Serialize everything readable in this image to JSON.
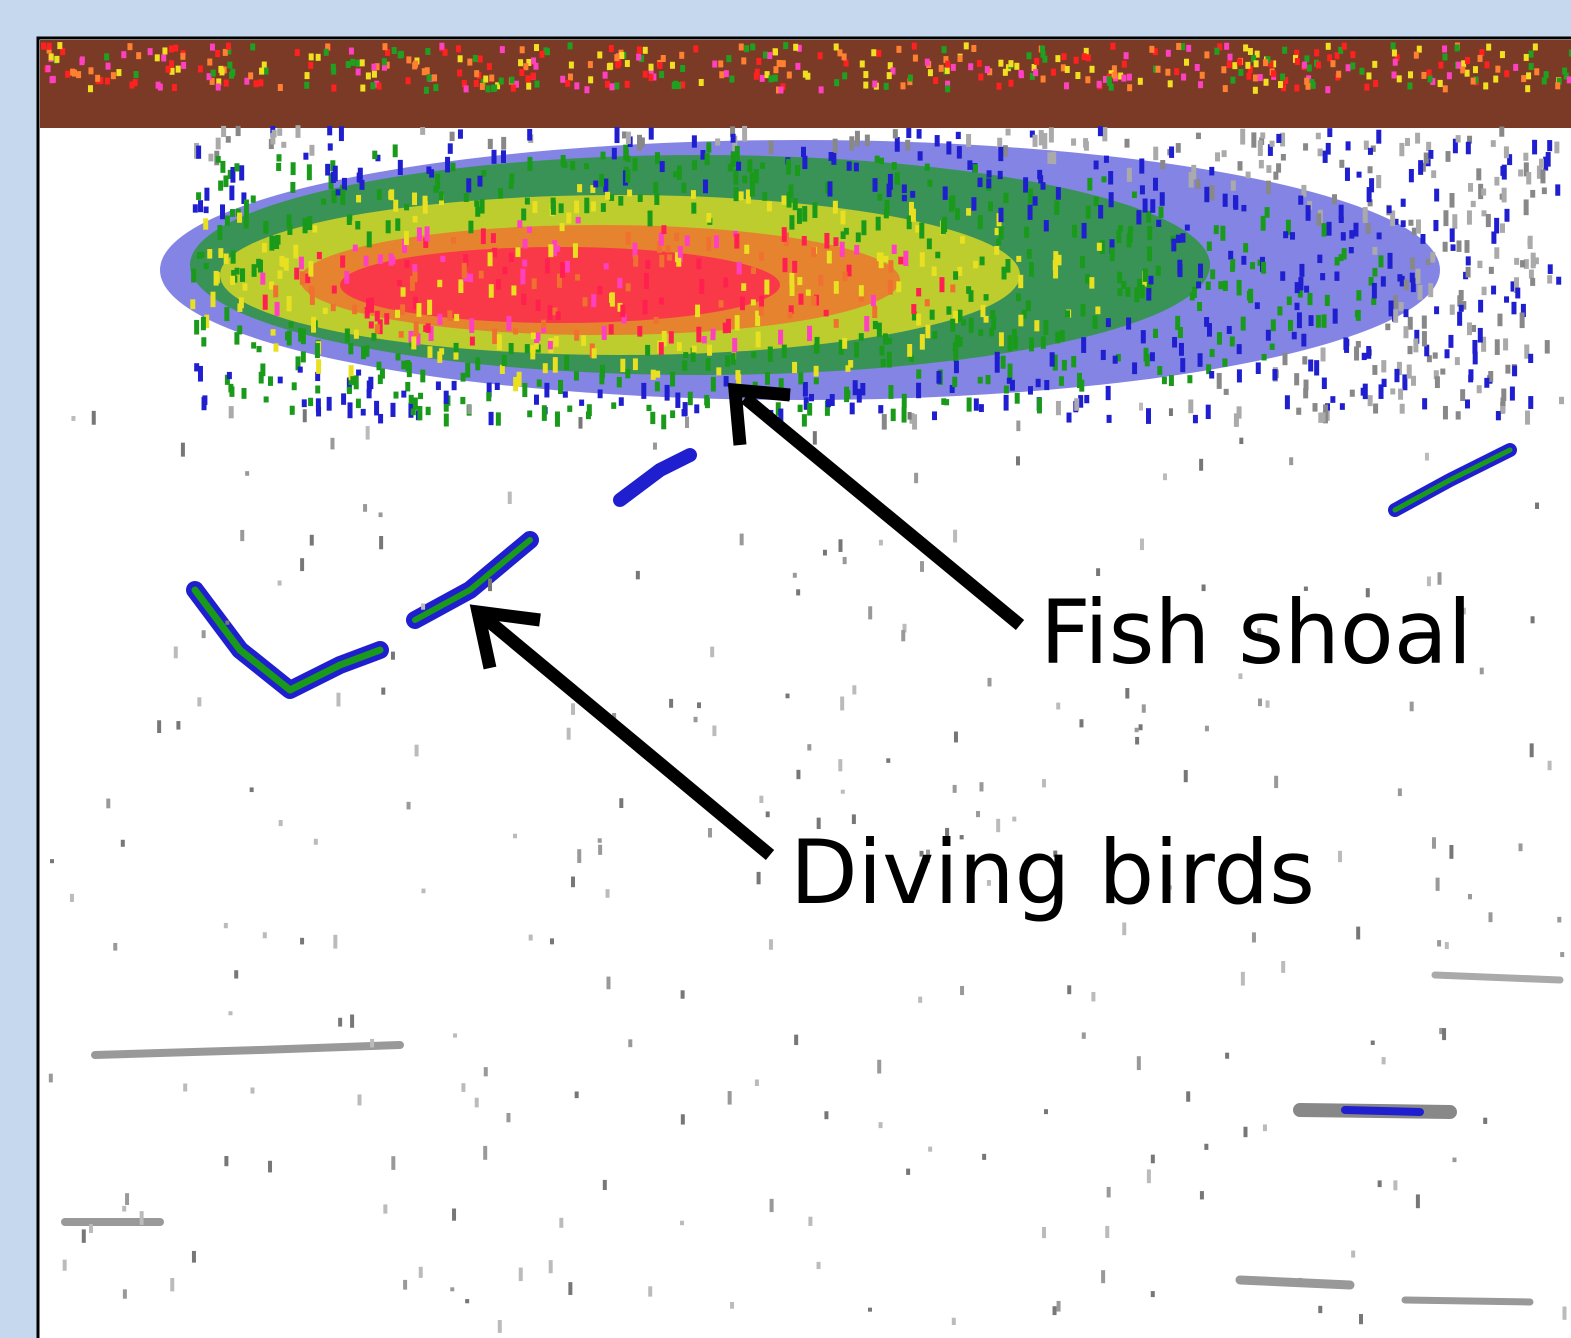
{
  "annotations": [
    {
      "label": "Fish shoal"
    },
    {
      "label": "Diving birds"
    }
  ]
}
